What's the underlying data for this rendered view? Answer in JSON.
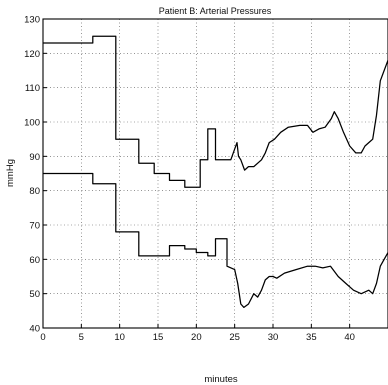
{
  "chart_data": {
    "type": "line",
    "title": "Patient B: Arterial Pressures",
    "xlabel": "minutes",
    "ylabel": "mmHg",
    "xlim": [
      0,
      45
    ],
    "ylim": [
      40,
      130
    ],
    "xticks": [
      0,
      5,
      10,
      15,
      20,
      25,
      30,
      35,
      40
    ],
    "yticks": [
      40,
      50,
      60,
      70,
      80,
      90,
      100,
      110,
      120,
      130
    ],
    "grid": true,
    "series": [
      {
        "x": [
          0,
          6.5,
          6.5,
          9.5,
          9.5,
          12.5,
          12.5,
          14.5,
          14.5,
          16.5,
          16.5,
          18.5,
          18.5,
          20.5,
          20.5,
          21.5,
          21.5,
          22.5,
          22.5,
          24.5,
          24.5,
          25.3,
          25.5,
          25.8,
          26.3,
          26.8,
          27.5,
          28.5,
          29.0,
          29.5,
          30.2,
          31.0,
          32.0,
          33.5,
          34.5,
          35.2,
          36.0,
          36.8,
          37.6,
          38.0,
          38.5,
          39.2,
          40.0,
          40.8,
          41.5,
          42.0,
          42.5,
          43.0,
          43.5,
          44.0,
          45
        ],
        "values": [
          123,
          123,
          125,
          125,
          95,
          95,
          88,
          88,
          85,
          85,
          83,
          83,
          81,
          81,
          89,
          89,
          98,
          98,
          89,
          89,
          89,
          94,
          90,
          89,
          86,
          87,
          87,
          89,
          91,
          94,
          95,
          97,
          98.5,
          99,
          99,
          97,
          98,
          98.5,
          101,
          103,
          101,
          97,
          93,
          91,
          91,
          93,
          94,
          95,
          102,
          112,
          118
        ]
      },
      {
        "x": [
          0,
          6.5,
          6.5,
          9.5,
          9.5,
          12.5,
          12.5,
          16.5,
          16.5,
          18.5,
          18.5,
          20.0,
          20.0,
          21.5,
          21.5,
          22.5,
          22.5,
          24.0,
          24.0,
          25.0,
          25.4,
          25.8,
          26.2,
          26.8,
          27.5,
          28.0,
          28.5,
          29.0,
          29.5,
          30.0,
          30.5,
          31.5,
          33.0,
          34.5,
          35.5,
          36.5,
          37.5,
          38.5,
          39.5,
          40.5,
          41.5,
          42.5,
          43.0,
          43.5,
          44.0,
          45
        ],
        "values": [
          85,
          85,
          82,
          82,
          68,
          68,
          61,
          61,
          64,
          64,
          63,
          63,
          62,
          62,
          61,
          61,
          66,
          66,
          58,
          57,
          53,
          47,
          46,
          47,
          50,
          49,
          51,
          54,
          55,
          55,
          54.5,
          56,
          57,
          58,
          58,
          57.5,
          58,
          55,
          53,
          51,
          50,
          51,
          50,
          53,
          58,
          62
        ]
      }
    ]
  }
}
